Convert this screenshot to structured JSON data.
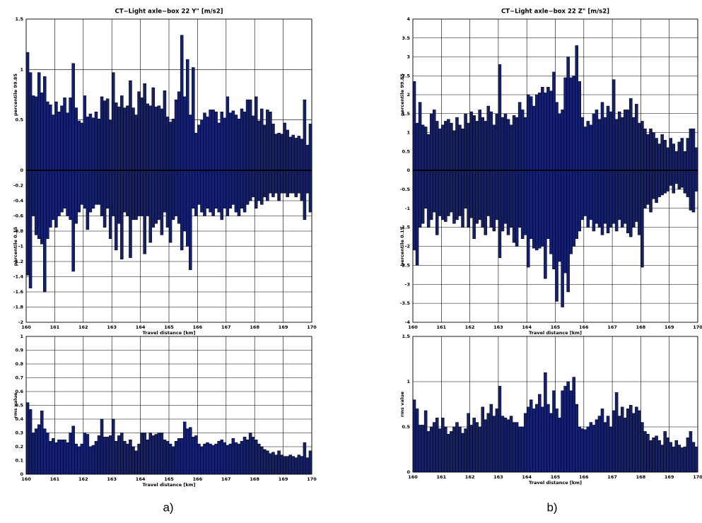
{
  "chart_data": [
    {
      "type": "bar",
      "title": "CT−Light axle−box 22 Y\" [m/s2]",
      "xlabel": "Travel distance [km]",
      "x": [
        160,
        160.1,
        160.2,
        160.3,
        160.4,
        160.5,
        160.6,
        160.7,
        160.8,
        160.9,
        161,
        161.1,
        161.2,
        161.3,
        161.4,
        161.5,
        161.6,
        161.7,
        161.8,
        161.9,
        162,
        162.1,
        162.2,
        162.3,
        162.4,
        162.5,
        162.6,
        162.7,
        162.8,
        162.9,
        163,
        163.1,
        163.2,
        163.3,
        163.4,
        163.5,
        163.6,
        163.7,
        163.8,
        163.9,
        164,
        164.1,
        164.2,
        164.3,
        164.4,
        164.5,
        164.6,
        164.7,
        164.8,
        164.9,
        165,
        165.1,
        165.2,
        165.3,
        165.4,
        165.5,
        165.6,
        165.7,
        165.8,
        165.9,
        166,
        166.1,
        166.2,
        166.3,
        166.4,
        166.5,
        166.6,
        166.7,
        166.8,
        166.9,
        167,
        167.1,
        167.2,
        167.3,
        167.4,
        167.5,
        167.6,
        167.7,
        167.8,
        167.9,
        168,
        168.1,
        168.2,
        168.3,
        168.4,
        168.5,
        168.6,
        168.7,
        168.8,
        168.9,
        169,
        169.1,
        169.2,
        169.3,
        169.4,
        169.5,
        169.6,
        169.7,
        169.8,
        169.9
      ],
      "xlim": [
        160,
        170
      ],
      "xticks": [
        160,
        161,
        162,
        163,
        164,
        165,
        166,
        167,
        168,
        169,
        170
      ],
      "ylim": [
        0,
        1.5
      ],
      "yticks": [
        0,
        0.5,
        1,
        1.5
      ],
      "y2lim": [
        -2,
        0
      ],
      "y2ticks": [
        -2,
        -1.8,
        -1.6,
        -1.4,
        -1.2,
        -1,
        -0.8,
        -0.6,
        -0.4,
        -0.2
      ],
      "grid": true,
      "series": [
        {
          "name": "percentile 99.85",
          "color": "#14206e",
          "values": [
            1.17,
            0.97,
            0.74,
            0.73,
            0.97,
            0.77,
            0.93,
            0.68,
            0.65,
            0.55,
            0.68,
            0.58,
            0.64,
            0.72,
            0.57,
            0.72,
            1.06,
            0.62,
            0.49,
            0.47,
            0.74,
            0.53,
            0.56,
            0.52,
            0.58,
            0.51,
            0.73,
            0.69,
            0.71,
            0.5,
            0.97,
            0.67,
            0.63,
            0.74,
            0.62,
            0.64,
            0.89,
            0.62,
            0.55,
            0.78,
            0.72,
            0.86,
            0.66,
            0.64,
            0.82,
            0.63,
            0.64,
            0.61,
            0.79,
            0.53,
            0.48,
            0.51,
            0.7,
            0.78,
            1.34,
            0.73,
            1.1,
            0.55,
            1.02,
            0.37,
            0.45,
            0.5,
            0.57,
            0.53,
            0.6,
            0.6,
            0.58,
            0.47,
            0.58,
            0.52,
            0.73,
            0.57,
            0.59,
            0.55,
            0.51,
            0.61,
            0.58,
            0.7,
            0.7,
            0.54,
            0.73,
            0.49,
            0.61,
            0.45,
            0.6,
            0.58,
            0.46,
            0.36,
            0.37,
            0.36,
            0.47,
            0.4,
            0.33,
            0.35,
            0.32,
            0.34,
            0.31,
            0.7,
            0.25,
            0.46
          ]
        },
        {
          "name": "percentile 0.15",
          "axis": "y2",
          "color": "#14206e",
          "values": [
            -1.38,
            -1.55,
            -0.6,
            -0.85,
            -0.9,
            -0.97,
            -1.6,
            -0.9,
            -0.75,
            -0.65,
            -0.75,
            -0.6,
            -0.55,
            -0.5,
            -0.6,
            -0.65,
            -1.33,
            -0.7,
            -0.55,
            -0.45,
            -0.5,
            -0.78,
            -0.55,
            -0.5,
            -0.45,
            -0.45,
            -0.6,
            -0.75,
            -0.5,
            -0.9,
            -0.6,
            -1.05,
            -0.7,
            -1.17,
            -0.55,
            -0.6,
            -1.15,
            -0.65,
            -0.65,
            -0.6,
            -0.6,
            -1.1,
            -0.6,
            -0.95,
            -0.75,
            -0.7,
            -0.65,
            -0.85,
            -0.55,
            -0.75,
            -0.95,
            -0.65,
            -0.6,
            -0.7,
            -1.05,
            -0.8,
            -1,
            -1.31,
            -0.5,
            -0.6,
            -0.45,
            -0.55,
            -0.6,
            -0.5,
            -0.55,
            -0.6,
            -0.5,
            -0.55,
            -0.65,
            -0.5,
            -0.6,
            -0.5,
            -0.45,
            -0.55,
            -0.6,
            -0.5,
            -0.55,
            -0.45,
            -0.4,
            -0.35,
            -0.5,
            -0.4,
            -0.45,
            -0.35,
            -0.4,
            -0.3,
            -0.35,
            -0.3,
            -0.4,
            -0.3,
            -0.3,
            -0.35,
            -0.3,
            -0.3,
            -0.35,
            -0.3,
            -0.4,
            -0.65,
            -0.3,
            -0.55
          ]
        }
      ]
    },
    {
      "type": "bar",
      "xlabel": "Travel distance [km]",
      "ylabel": "rms value",
      "x": [
        160,
        160.1,
        160.2,
        160.3,
        160.4,
        160.5,
        160.6,
        160.7,
        160.8,
        160.9,
        161,
        161.1,
        161.2,
        161.3,
        161.4,
        161.5,
        161.6,
        161.7,
        161.8,
        161.9,
        162,
        162.1,
        162.2,
        162.3,
        162.4,
        162.5,
        162.6,
        162.7,
        162.8,
        162.9,
        163,
        163.1,
        163.2,
        163.3,
        163.4,
        163.5,
        163.6,
        163.7,
        163.8,
        163.9,
        164,
        164.1,
        164.2,
        164.3,
        164.4,
        164.5,
        164.6,
        164.7,
        164.8,
        164.9,
        165,
        165.1,
        165.2,
        165.3,
        165.4,
        165.5,
        165.6,
        165.7,
        165.8,
        165.9,
        166,
        166.1,
        166.2,
        166.3,
        166.4,
        166.5,
        166.6,
        166.7,
        166.8,
        166.9,
        167,
        167.1,
        167.2,
        167.3,
        167.4,
        167.5,
        167.6,
        167.7,
        167.8,
        167.9,
        168,
        168.1,
        168.2,
        168.3,
        168.4,
        168.5,
        168.6,
        168.7,
        168.8,
        168.9,
        169,
        169.1,
        169.2,
        169.3,
        169.4,
        169.5,
        169.6,
        169.7,
        169.8,
        169.9
      ],
      "xlim": [
        160,
        170
      ],
      "xticks": [
        160,
        161,
        162,
        163,
        164,
        165,
        166,
        167,
        168,
        169,
        170
      ],
      "ylim": [
        0,
        1
      ],
      "yticks": [
        0,
        0.1,
        0.2,
        0.3,
        0.4,
        0.5,
        0.6,
        0.7,
        0.8,
        0.9,
        1
      ],
      "grid": true,
      "color": "#14206e",
      "values": [
        0.52,
        0.47,
        0.3,
        0.33,
        0.36,
        0.46,
        0.33,
        0.3,
        0.24,
        0.26,
        0.23,
        0.25,
        0.25,
        0.25,
        0.23,
        0.3,
        0.35,
        0.22,
        0.2,
        0.22,
        0.3,
        0.29,
        0.2,
        0.21,
        0.24,
        0.28,
        0.4,
        0.27,
        0.27,
        0.28,
        0.4,
        0.24,
        0.28,
        0.3,
        0.24,
        0.22,
        0.25,
        0.2,
        0.17,
        0.22,
        0.3,
        0.3,
        0.25,
        0.3,
        0.28,
        0.29,
        0.3,
        0.3,
        0.25,
        0.24,
        0.22,
        0.2,
        0.24,
        0.26,
        0.26,
        0.38,
        0.33,
        0.34,
        0.27,
        0.28,
        0.22,
        0.2,
        0.22,
        0.23,
        0.22,
        0.21,
        0.22,
        0.24,
        0.25,
        0.23,
        0.21,
        0.22,
        0.26,
        0.23,
        0.22,
        0.24,
        0.27,
        0.25,
        0.3,
        0.27,
        0.25,
        0.22,
        0.2,
        0.18,
        0.17,
        0.15,
        0.16,
        0.14,
        0.17,
        0.14,
        0.13,
        0.13,
        0.14,
        0.13,
        0.12,
        0.14,
        0.13,
        0.23,
        0.12,
        0.17
      ]
    },
    {
      "type": "bar",
      "title": "CT−Light axle−box 22 Z\" [m/s2]",
      "xlabel": "Travel distance [km]",
      "x": [
        160,
        160.1,
        160.2,
        160.3,
        160.4,
        160.5,
        160.6,
        160.7,
        160.8,
        160.9,
        161,
        161.1,
        161.2,
        161.3,
        161.4,
        161.5,
        161.6,
        161.7,
        161.8,
        161.9,
        162,
        162.1,
        162.2,
        162.3,
        162.4,
        162.5,
        162.6,
        162.7,
        162.8,
        162.9,
        163,
        163.1,
        163.2,
        163.3,
        163.4,
        163.5,
        163.6,
        163.7,
        163.8,
        163.9,
        164,
        164.1,
        164.2,
        164.3,
        164.4,
        164.5,
        164.6,
        164.7,
        164.8,
        164.9,
        165,
        165.1,
        165.2,
        165.3,
        165.4,
        165.5,
        165.6,
        165.7,
        165.8,
        165.9,
        166,
        166.1,
        166.2,
        166.3,
        166.4,
        166.5,
        166.6,
        166.7,
        166.8,
        166.9,
        167,
        167.1,
        167.2,
        167.3,
        167.4,
        167.5,
        167.6,
        167.7,
        167.8,
        167.9,
        168,
        168.1,
        168.2,
        168.3,
        168.4,
        168.5,
        168.6,
        168.7,
        168.8,
        168.9,
        169,
        169.1,
        169.2,
        169.3,
        169.4,
        169.5,
        169.6,
        169.7,
        169.8,
        169.9
      ],
      "xlim": [
        160,
        170
      ],
      "xticks": [
        160,
        161,
        162,
        163,
        164,
        165,
        166,
        167,
        168,
        169,
        170
      ],
      "ylim": [
        0,
        4
      ],
      "yticks": [
        0,
        0.5,
        1,
        1.5,
        2,
        2.5,
        3,
        3.5,
        4
      ],
      "y2lim": [
        -4,
        0
      ],
      "y2ticks": [
        -4,
        -3.5,
        -3,
        -2.5,
        -2,
        -1.5,
        -1,
        -0.5
      ],
      "grid": true,
      "series": [
        {
          "name": "percentile 99.85",
          "color": "#14206e",
          "values": [
            2.35,
            1.25,
            1.8,
            1.2,
            1.15,
            0.95,
            1.5,
            1.6,
            1.3,
            1.1,
            1.2,
            1.3,
            1.35,
            1.25,
            1.05,
            1.4,
            1.2,
            1.1,
            1.5,
            1.25,
            1.55,
            1.45,
            1.3,
            1.6,
            1.4,
            1.3,
            1.7,
            1.55,
            1.2,
            1.5,
            2.8,
            1.4,
            1.5,
            1.35,
            1.2,
            1.45,
            1.4,
            1.8,
            1.6,
            1.4,
            2,
            1.95,
            1.7,
            2,
            2.05,
            2.2,
            2.05,
            2.2,
            2.1,
            2.6,
            1.8,
            1.5,
            1.6,
            2.45,
            3,
            2.45,
            2.5,
            3.3,
            2.35,
            1.4,
            1.15,
            1.3,
            1.2,
            1.5,
            1.6,
            1.35,
            1.8,
            1.4,
            1.7,
            1.55,
            2.4,
            1.35,
            1.55,
            1.4,
            1.6,
            1.6,
            1.9,
            1.4,
            1.75,
            1.25,
            1.3,
            1.1,
            0.95,
            1.1,
            1,
            0.85,
            0.7,
            0.95,
            0.8,
            0.6,
            0.85,
            0.7,
            0.5,
            0.75,
            0.85,
            0.5,
            0.85,
            1.1,
            1.1,
            0.6
          ]
        },
        {
          "name": "percentile 0.15",
          "axis": "y2",
          "color": "#14206e",
          "values": [
            -2.1,
            -2.5,
            -1.5,
            -1.4,
            -1,
            -1.5,
            -1.3,
            -1.1,
            -1.7,
            -1.2,
            -1.3,
            -1.35,
            -1.2,
            -1.1,
            -1.4,
            -1.3,
            -1.2,
            -1.5,
            -1,
            -1.5,
            -1.25,
            -1.8,
            -1.4,
            -1.3,
            -1.5,
            -1.7,
            -1.2,
            -1.5,
            -1.6,
            -1.3,
            -2.3,
            -1.6,
            -1.4,
            -1.7,
            -1.5,
            -1.9,
            -2,
            -1.5,
            -1.8,
            -1.7,
            -2.55,
            -1.8,
            -2.05,
            -2.1,
            -2.05,
            -2,
            -2.85,
            -1.8,
            -2.2,
            -2.6,
            -3.45,
            -2.4,
            -3.6,
            -2.7,
            -3.2,
            -2.2,
            -2,
            -1.8,
            -1.6,
            -1.3,
            -1.2,
            -1.5,
            -1.3,
            -1.6,
            -1.4,
            -1.5,
            -1.7,
            -1.4,
            -1.65,
            -1.5,
            -1.4,
            -1.6,
            -1.3,
            -1.5,
            -1.4,
            -1.65,
            -1.75,
            -1.5,
            -1.35,
            -1.7,
            -2.55,
            -1,
            -0.9,
            -1.1,
            -0.75,
            -0.85,
            -0.7,
            -0.65,
            -0.6,
            -0.55,
            -0.4,
            -0.6,
            -0.35,
            -0.5,
            -0.45,
            -0.6,
            -0.7,
            -1.05,
            -1.1,
            -0.55
          ]
        }
      ]
    },
    {
      "type": "bar",
      "xlabel": "Travel distance [km]",
      "ylabel": "rms value",
      "x": [
        160,
        160.1,
        160.2,
        160.3,
        160.4,
        160.5,
        160.6,
        160.7,
        160.8,
        160.9,
        161,
        161.1,
        161.2,
        161.3,
        161.4,
        161.5,
        161.6,
        161.7,
        161.8,
        161.9,
        162,
        162.1,
        162.2,
        162.3,
        162.4,
        162.5,
        162.6,
        162.7,
        162.8,
        162.9,
        163,
        163.1,
        163.2,
        163.3,
        163.4,
        163.5,
        163.6,
        163.7,
        163.8,
        163.9,
        164,
        164.1,
        164.2,
        164.3,
        164.4,
        164.5,
        164.6,
        164.7,
        164.8,
        164.9,
        165,
        165.1,
        165.2,
        165.3,
        165.4,
        165.5,
        165.6,
        165.7,
        165.8,
        165.9,
        166,
        166.1,
        166.2,
        166.3,
        166.4,
        166.5,
        166.6,
        166.7,
        166.8,
        166.9,
        167,
        167.1,
        167.2,
        167.3,
        167.4,
        167.5,
        167.6,
        167.7,
        167.8,
        167.9,
        168,
        168.1,
        168.2,
        168.3,
        168.4,
        168.5,
        168.6,
        168.7,
        168.8,
        168.9,
        169,
        169.1,
        169.2,
        169.3,
        169.4,
        169.5,
        169.6,
        169.7,
        169.8,
        169.9
      ],
      "xlim": [
        160,
        170
      ],
      "xticks": [
        160,
        161,
        162,
        163,
        164,
        165,
        166,
        167,
        168,
        169,
        170
      ],
      "ylim": [
        0,
        1.5
      ],
      "yticks": [
        0,
        0.5,
        1,
        1.5
      ],
      "grid": true,
      "color": "#14206e",
      "values": [
        0.8,
        0.7,
        0.52,
        0.52,
        0.68,
        0.45,
        0.5,
        0.55,
        0.6,
        0.48,
        0.6,
        0.5,
        0.42,
        0.45,
        0.5,
        0.55,
        0.5,
        0.43,
        0.48,
        0.65,
        0.52,
        0.6,
        0.55,
        0.5,
        0.72,
        0.58,
        0.65,
        0.75,
        0.62,
        0.7,
        0.95,
        0.62,
        0.6,
        0.58,
        0.62,
        0.55,
        0.55,
        0.5,
        0.5,
        0.65,
        0.72,
        0.8,
        0.7,
        0.75,
        0.86,
        0.72,
        1.1,
        0.75,
        0.65,
        0.9,
        0.7,
        0.6,
        0.9,
        0.95,
        1,
        0.9,
        1.05,
        0.75,
        0.5,
        0.48,
        0.47,
        0.5,
        0.55,
        0.52,
        0.58,
        0.62,
        0.7,
        0.55,
        0.62,
        0.5,
        0.68,
        0.88,
        0.62,
        0.72,
        0.6,
        0.7,
        0.74,
        0.65,
        0.72,
        0.68,
        0.55,
        0.45,
        0.42,
        0.35,
        0.38,
        0.4,
        0.35,
        0.3,
        0.45,
        0.38,
        0.33,
        0.28,
        0.35,
        0.3,
        0.27,
        0.28,
        0.38,
        0.45,
        0.33,
        0.28
      ]
    }
  ],
  "captions": [
    "a)",
    "b)"
  ]
}
